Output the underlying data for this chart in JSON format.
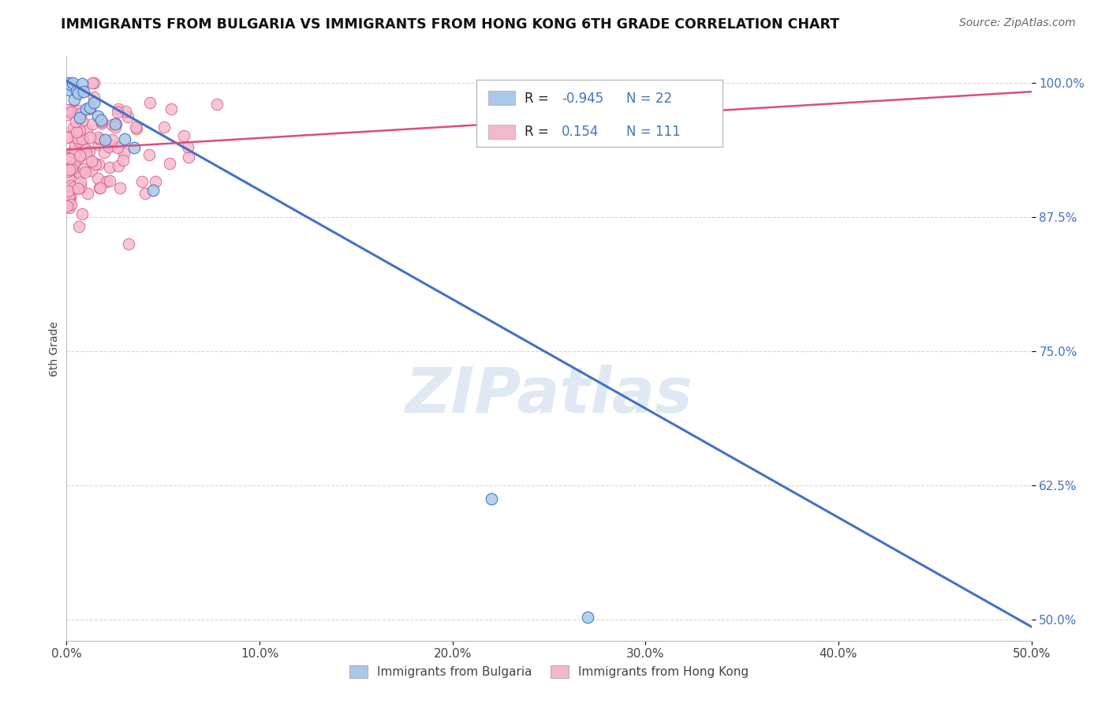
{
  "title": "IMMIGRANTS FROM BULGARIA VS IMMIGRANTS FROM HONG KONG 6TH GRADE CORRELATION CHART",
  "source": "Source: ZipAtlas.com",
  "ylabel": "6th Grade",
  "ytick_labels": [
    "100.0%",
    "87.5%",
    "75.0%",
    "62.5%",
    "50.0%"
  ],
  "ytick_values": [
    1.0,
    0.875,
    0.75,
    0.625,
    0.5
  ],
  "xtick_labels": [
    "0.0%",
    "10.0%",
    "20.0%",
    "30.0%",
    "40.0%",
    "50.0%"
  ],
  "xtick_values": [
    0.0,
    0.1,
    0.2,
    0.3,
    0.4,
    0.5
  ],
  "xmin": 0.0,
  "xmax": 0.5,
  "ymin": 0.48,
  "ymax": 1.025,
  "legend_r_bulgaria": "-0.945",
  "legend_n_bulgaria": "22",
  "legend_r_hongkong": "0.154",
  "legend_n_hongkong": "111",
  "bulgaria_fill_color": "#aac9e8",
  "hongkong_fill_color": "#f4b8cc",
  "bulgaria_line_color": "#4472c4",
  "hongkong_line_color": "#d94f7a",
  "watermark": "ZIPatlas",
  "background_color": "#ffffff",
  "grid_color": "#d8d8d8",
  "bul_line_x": [
    0.0,
    0.5
  ],
  "bul_line_y": [
    1.002,
    0.493
  ],
  "hk_line_x": [
    0.0,
    0.5
  ],
  "hk_line_y": [
    0.938,
    0.992
  ]
}
